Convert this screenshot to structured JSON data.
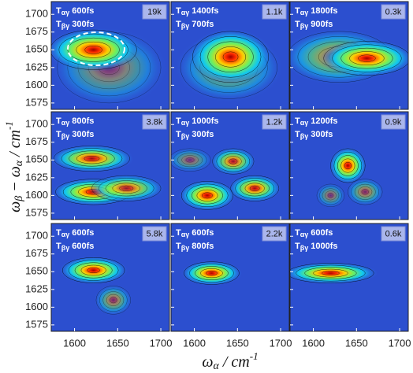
{
  "chart_data": {
    "type": "contour",
    "delay_symbol": "T",
    "delay1_sub": "αγ",
    "delay2_sub": "βγ",
    "xlim": [
      1573,
      1710
    ],
    "ylim": [
      1566,
      1718
    ],
    "xticks": [
      1600,
      1650,
      1700
    ],
    "yticks": [
      1575,
      1600,
      1625,
      1650,
      1675,
      1700
    ],
    "xlabel": [
      {
        "text": "ω"
      },
      {
        "sub": "α"
      },
      {
        "text": " / cm"
      },
      {
        "sup": "-1"
      }
    ],
    "ylabel": [
      {
        "text": "ω"
      },
      {
        "sub": "β"
      },
      {
        "text": " − ω"
      },
      {
        "sub": "α"
      },
      {
        "text": " / cm"
      },
      {
        "sup": "-1"
      }
    ],
    "panels": [
      {
        "t1": "600fs",
        "t2": "300fs",
        "scale": "19k",
        "peaks": [
          {
            "x": 1640,
            "y": 1625,
            "sx": 30,
            "sy": 25,
            "amp": 0.4
          },
          {
            "x": 1622,
            "y": 1650,
            "sx": 25,
            "sy": 14,
            "amp": 1
          }
        ]
      },
      {
        "t1": "1400fs",
        "t2": "700fs",
        "scale": "1.1k",
        "peaks": [
          {
            "x": 1640,
            "y": 1625,
            "sx": 28,
            "sy": 22,
            "amp": 0.5
          },
          {
            "x": 1642,
            "y": 1640,
            "sx": 22,
            "sy": 18,
            "amp": 1
          }
        ]
      },
      {
        "t1": "1800fs",
        "t2": "900fs",
        "scale": "0.3k",
        "peaks": [
          {
            "x": 1630,
            "y": 1640,
            "sx": 30,
            "sy": 18,
            "amp": 0.6
          },
          {
            "x": 1662,
            "y": 1638,
            "sx": 25,
            "sy": 12,
            "amp": 1
          }
        ]
      },
      {
        "t1": "800fs",
        "t2": "300fs",
        "scale": "3.8k",
        "peaks": [
          {
            "x": 1620,
            "y": 1652,
            "sx": 22,
            "sy": 9,
            "amp": 0.9
          },
          {
            "x": 1622,
            "y": 1605,
            "sx": 22,
            "sy": 9,
            "amp": 1
          },
          {
            "x": 1660,
            "y": 1610,
            "sx": 20,
            "sy": 9,
            "amp": 0.8
          }
        ]
      },
      {
        "t1": "1000fs",
        "t2": "300fs",
        "scale": "1.2k",
        "peaks": [
          {
            "x": 1595,
            "y": 1650,
            "sx": 12,
            "sy": 8,
            "amp": 0.4
          },
          {
            "x": 1645,
            "y": 1648,
            "sx": 12,
            "sy": 9,
            "amp": 0.8
          },
          {
            "x": 1615,
            "y": 1600,
            "sx": 15,
            "sy": 10,
            "amp": 1
          },
          {
            "x": 1670,
            "y": 1610,
            "sx": 14,
            "sy": 9,
            "amp": 0.9
          }
        ]
      },
      {
        "t1": "1200fs",
        "t2": "300fs",
        "scale": "0.9k",
        "peaks": [
          {
            "x": 1620,
            "y": 1600,
            "sx": 8,
            "sy": 8,
            "amp": 0.4
          },
          {
            "x": 1660,
            "y": 1605,
            "sx": 10,
            "sy": 9,
            "amp": 0.5
          },
          {
            "x": 1640,
            "y": 1642,
            "sx": 10,
            "sy": 12,
            "amp": 1
          }
        ]
      },
      {
        "t1": "600fs",
        "t2": "600fs",
        "scale": "5.8k",
        "peaks": [
          {
            "x": 1645,
            "y": 1610,
            "sx": 10,
            "sy": 10,
            "amp": 0.5
          },
          {
            "x": 1622,
            "y": 1652,
            "sx": 18,
            "sy": 9,
            "amp": 1
          }
        ]
      },
      {
        "t1": "600fs",
        "t2": "800fs",
        "scale": "2.2k",
        "peaks": [
          {
            "x": 1620,
            "y": 1648,
            "sx": 16,
            "sy": 8,
            "amp": 1
          }
        ]
      },
      {
        "t1": "600fs",
        "t2": "1000fs",
        "scale": "0.6k",
        "peaks": [
          {
            "x": 1620,
            "y": 1648,
            "sx": 25,
            "sy": 7,
            "amp": 1
          }
        ]
      }
    ]
  }
}
